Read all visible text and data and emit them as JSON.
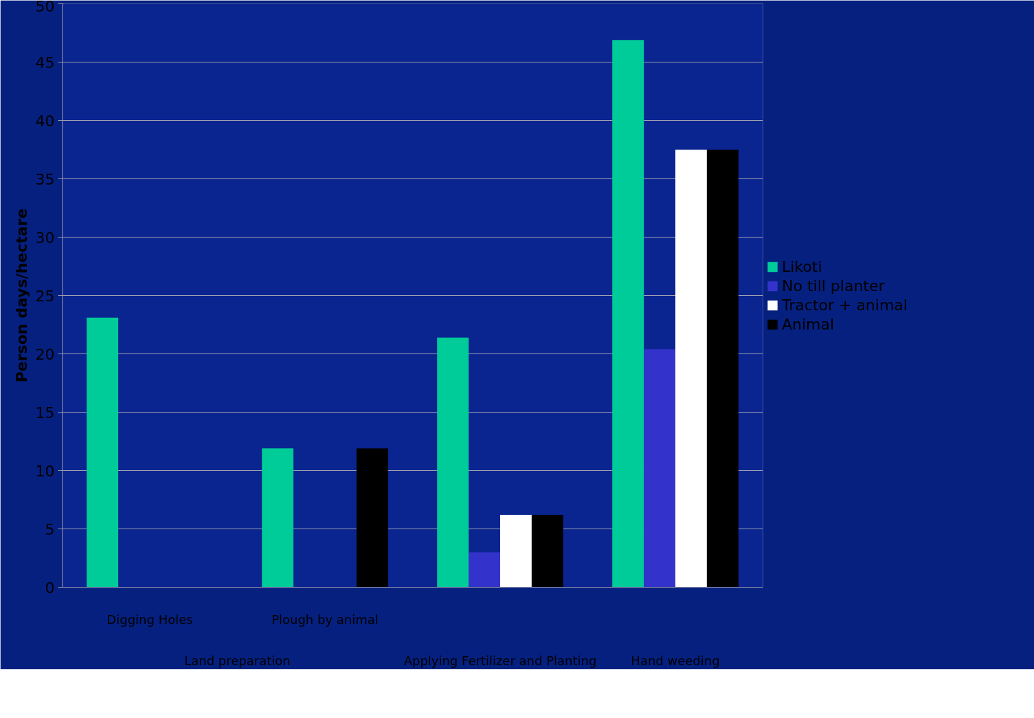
{
  "chart_data": {
    "type": "bar",
    "ylabel": "Person days/hectare",
    "categories": [
      "Digging Holes",
      "Plough by animal",
      "Applying Fertilizer and Planting",
      "Hand weeding"
    ],
    "annotations": [
      "Land preparation"
    ],
    "series": [
      {
        "name": "Likoti",
        "color": "#00cc99",
        "values": [
          23.1,
          11.9,
          21.4,
          46.9
        ]
      },
      {
        "name": "No till planter",
        "color": "#3333cc",
        "values": [
          null,
          null,
          3.0,
          20.4
        ]
      },
      {
        "name": "Tractor + animal",
        "color": "#ffffff",
        "values": [
          null,
          null,
          6.2,
          37.5
        ]
      },
      {
        "name": "Animal",
        "color": "#000000",
        "values": [
          null,
          11.9,
          6.2,
          37.5
        ]
      }
    ],
    "ylim": [
      0,
      50
    ],
    "yticks": [
      0,
      5,
      10,
      15,
      20,
      25,
      30,
      35,
      40,
      45,
      50
    ],
    "grid": "y",
    "legend": "right"
  }
}
